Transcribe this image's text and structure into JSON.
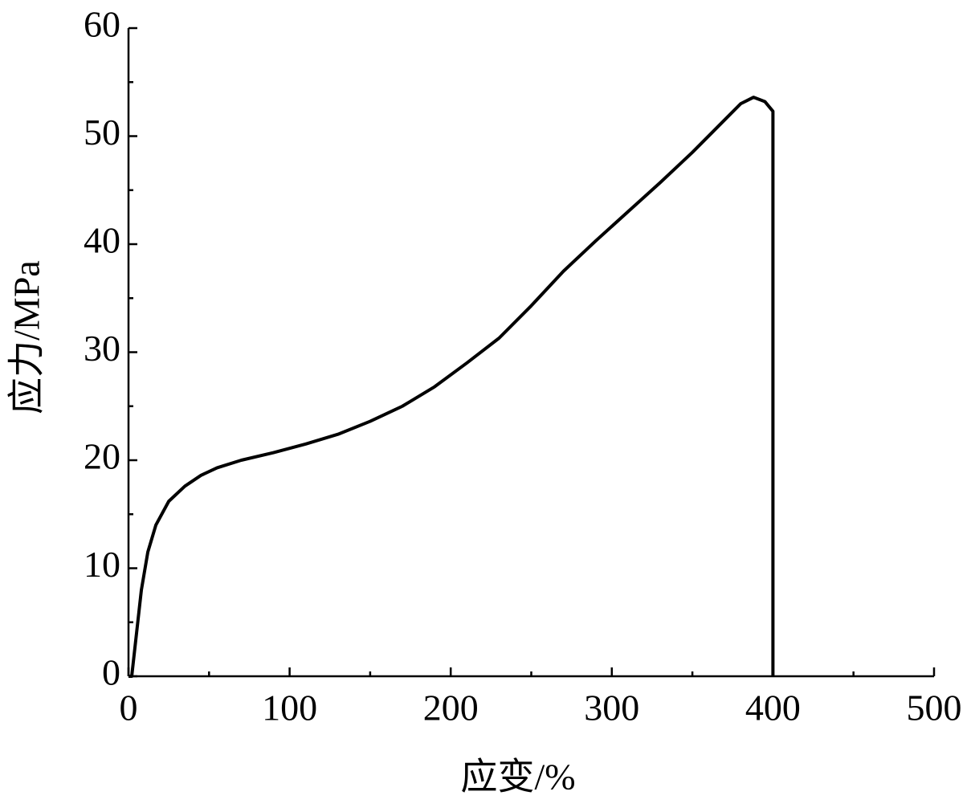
{
  "chart_data": {
    "type": "line",
    "xlabel": "应变/%",
    "ylabel": "应力/MPa",
    "x": [
      0,
      2,
      5,
      8,
      12,
      17,
      25,
      35,
      45,
      55,
      70,
      90,
      110,
      130,
      150,
      170,
      190,
      210,
      230,
      250,
      270,
      290,
      310,
      330,
      350,
      370,
      380,
      388,
      395,
      400,
      400
    ],
    "series": [
      {
        "color": "#000000",
        "values": [
          0,
          0,
          4,
          8,
          11.5,
          14,
          16.2,
          17.6,
          18.6,
          19.3,
          20,
          20.7,
          21.5,
          22.4,
          23.6,
          25,
          26.8,
          29,
          31.3,
          34.3,
          37.5,
          40.3,
          43,
          45.7,
          48.5,
          51.5,
          53,
          53.6,
          53.2,
          52.3,
          0
        ]
      }
    ],
    "xlim": [
      0,
      500
    ],
    "xticks": [
      0,
      100,
      200,
      300,
      400,
      500
    ],
    "xminorticks": [
      50,
      150,
      250,
      350,
      450
    ],
    "ylim": [
      0,
      60
    ],
    "yticks": [
      0,
      10,
      20,
      30,
      40,
      50,
      60
    ],
    "yminorticks": [
      5,
      15,
      25,
      35,
      45,
      55
    ]
  }
}
